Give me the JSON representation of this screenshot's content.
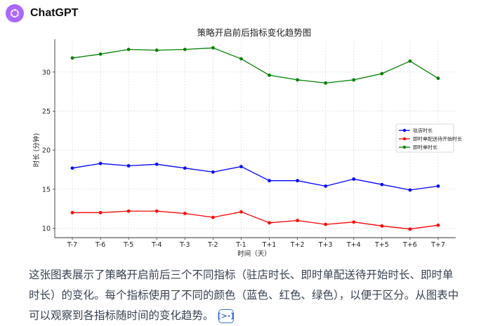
{
  "app": {
    "name": "ChatGPT",
    "logo_icon": "openai-logo-icon",
    "avatar_color": "#ab68ff"
  },
  "message": {
    "text": "这张图表展示了策略开启前后三个不同指标（驻店时长、即时单配送待开始时长、即时单时长）的变化。每个指标使用了不同的颜色（蓝色、红色、绿色），以便于区分。从图表中可以观察到各指标随时间的变化趋势。",
    "citation_icon": "code-citation-icon"
  },
  "chart_data": {
    "type": "line",
    "title": "策略开启前后指标变化趋势图",
    "xlabel": "时间（天）",
    "ylabel": "时长 (分钟)",
    "categories": [
      "T-7",
      "T-6",
      "T-5",
      "T-4",
      "T-3",
      "T-2",
      "T-1",
      "T+1",
      "T+2",
      "T+3",
      "T+4",
      "T+5",
      "T+6",
      "T+7"
    ],
    "ylim": [
      8.8,
      34.2
    ],
    "yticks": [
      10,
      15,
      20,
      25,
      30
    ],
    "grid": true,
    "legend_position": "right",
    "series": [
      {
        "name": "驻店时长",
        "color": "#0000ff",
        "values": [
          17.7,
          18.3,
          18.0,
          18.2,
          17.7,
          17.2,
          17.9,
          16.1,
          16.1,
          15.4,
          16.3,
          15.6,
          14.9,
          15.4
        ]
      },
      {
        "name": "即时单配送待开始时长",
        "color": "#ff0000",
        "values": [
          12.0,
          12.0,
          12.2,
          12.2,
          11.9,
          11.4,
          12.1,
          10.7,
          11.0,
          10.5,
          10.8,
          10.3,
          9.9,
          10.4
        ]
      },
      {
        "name": "即时单时长",
        "color": "#008000",
        "values": [
          31.8,
          32.3,
          32.9,
          32.8,
          32.9,
          33.1,
          31.7,
          29.6,
          29.0,
          28.6,
          29.0,
          29.8,
          31.4,
          29.2
        ]
      }
    ]
  }
}
